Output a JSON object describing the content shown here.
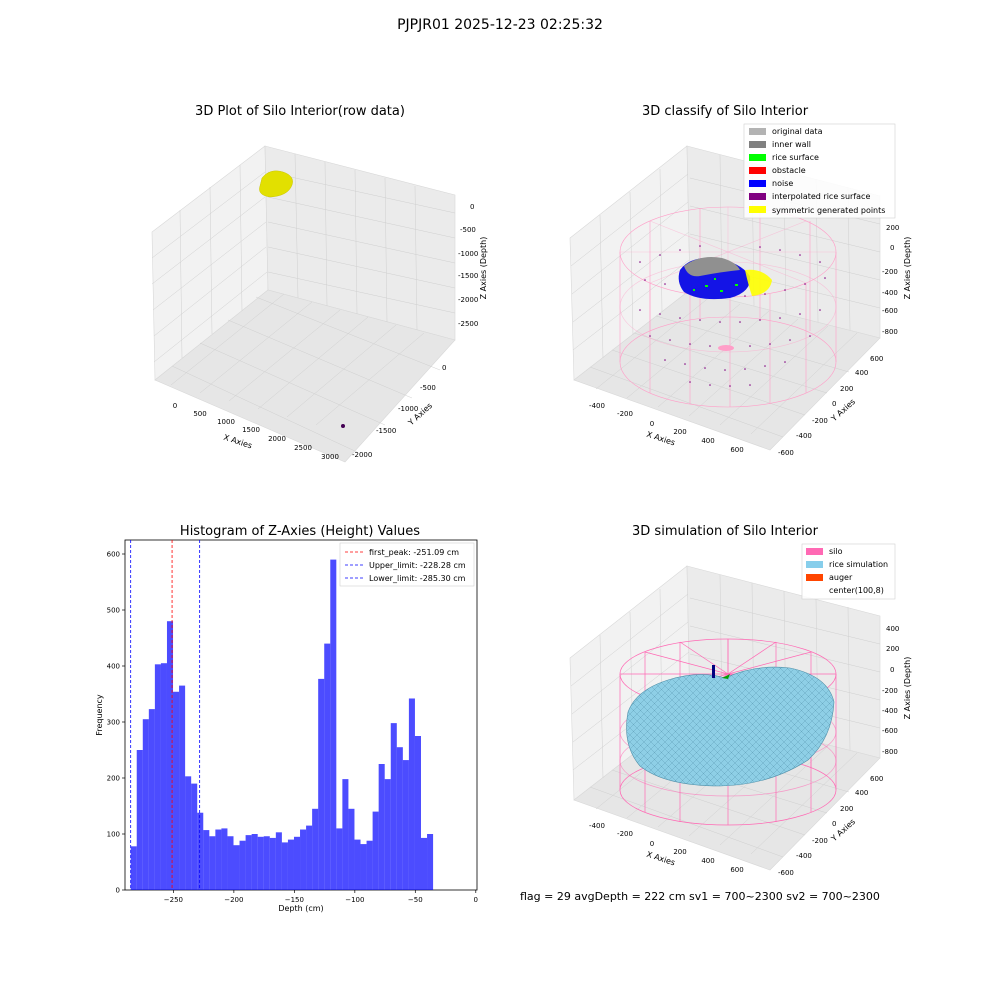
{
  "figure": {
    "title": "PJPJR01 2025-12-23 02:25:32",
    "footer": "flag = 29  avgDepth = 222 cm  sv1 = 700~2300  sv2 = 700~2300"
  },
  "chart_data": [
    {
      "type": "scatter",
      "projection": "3d",
      "title": "3D Plot of Silo Interior(row data)",
      "xlabel": "X Axies",
      "ylabel": "Y Axies",
      "zlabel": "Z Axies (Depth)",
      "xticks": [
        "0",
        "500",
        "1000",
        "1500",
        "2000",
        "2500",
        "3000"
      ],
      "yticks": [
        "-2000",
        "-1500",
        "-1000",
        "-500",
        "0"
      ],
      "zticks": [
        "-2500",
        "-2000",
        "-1500",
        "-1000",
        "-500",
        "0"
      ],
      "colors": {
        "cluster": "#e6e600",
        "outlier": "#440154"
      }
    },
    {
      "type": "scatter",
      "projection": "3d",
      "title": "3D classify of Silo Interior",
      "xlabel": "X Axies",
      "ylabel": "Y Axies",
      "zlabel": "Z Axies (Depth)",
      "xticks": [
        "-400",
        "-200",
        "0",
        "200",
        "400",
        "600"
      ],
      "yticks": [
        "-600",
        "-400",
        "-200",
        "0",
        "200",
        "400",
        "600"
      ],
      "zticks": [
        "-800",
        "-600",
        "-400",
        "-200",
        "0",
        "200"
      ],
      "legend": [
        {
          "label": "original data",
          "color": "#b3b3b3"
        },
        {
          "label": "inner wall",
          "color": "#808080"
        },
        {
          "label": "rice surface",
          "color": "#00ff00"
        },
        {
          "label": "obstacle",
          "color": "#ff0000"
        },
        {
          "label": "noise",
          "color": "#0000ff"
        },
        {
          "label": "interpolated rice surface",
          "color": "#800080"
        },
        {
          "label": "symmetric generated points",
          "color": "#ffff00"
        }
      ],
      "legend_loc": "upper right"
    },
    {
      "type": "bar",
      "title": "Histogram of Z-Axies (Height) Values",
      "xlabel": "Depth (cm)",
      "ylabel": "Frequency",
      "xlim": [
        -290,
        1
      ],
      "ylim": [
        0,
        625
      ],
      "xticks": [
        -250,
        -200,
        -150,
        -100,
        -50,
        0
      ],
      "yticks": [
        0,
        100,
        200,
        300,
        400,
        500,
        600
      ],
      "bin_edges_start": -285.3,
      "bin_width": 5.0,
      "values": [
        78,
        250,
        305,
        323,
        403,
        405,
        480,
        354,
        365,
        203,
        190,
        138,
        107,
        96,
        108,
        110,
        96,
        80,
        88,
        98,
        100,
        95,
        96,
        93,
        103,
        85,
        90,
        95,
        108,
        115,
        145,
        377,
        440,
        590,
        110,
        198,
        145,
        90,
        82,
        88,
        140,
        225,
        198,
        298,
        255,
        232,
        342,
        275,
        93,
        100
      ],
      "bar_color": "#0000ff",
      "vlines": [
        {
          "label": "first_peak: -251.09 cm",
          "x": -251.09,
          "color": "#ff0000"
        },
        {
          "label": "Upper_limit: -228.28 cm",
          "x": -228.28,
          "color": "#0000ff"
        },
        {
          "label": "Lower_limit: -285.30 cm",
          "x": -285.3,
          "color": "#0000ff"
        }
      ],
      "legend_loc": "upper right"
    },
    {
      "type": "surface",
      "projection": "3d",
      "title": "3D simulation of Silo Interior",
      "xlabel": "X Axies",
      "ylabel": "Y Axies",
      "zlabel": "Z Axies (Depth)",
      "xticks": [
        "-400",
        "-200",
        "0",
        "200",
        "400",
        "600"
      ],
      "yticks": [
        "-600",
        "-400",
        "-200",
        "0",
        "200",
        "400",
        "600"
      ],
      "zticks": [
        "-800",
        "-600",
        "-400",
        "-200",
        "0",
        "200",
        "400"
      ],
      "legend": [
        {
          "label": "silo",
          "color": "#ff69b4"
        },
        {
          "label": "rice simulation",
          "color": "#87ceeb"
        },
        {
          "label": "auger",
          "color": "#ff4500"
        },
        {
          "label": "center(100,8)",
          "color": ""
        }
      ],
      "legend_loc": "upper right"
    }
  ]
}
